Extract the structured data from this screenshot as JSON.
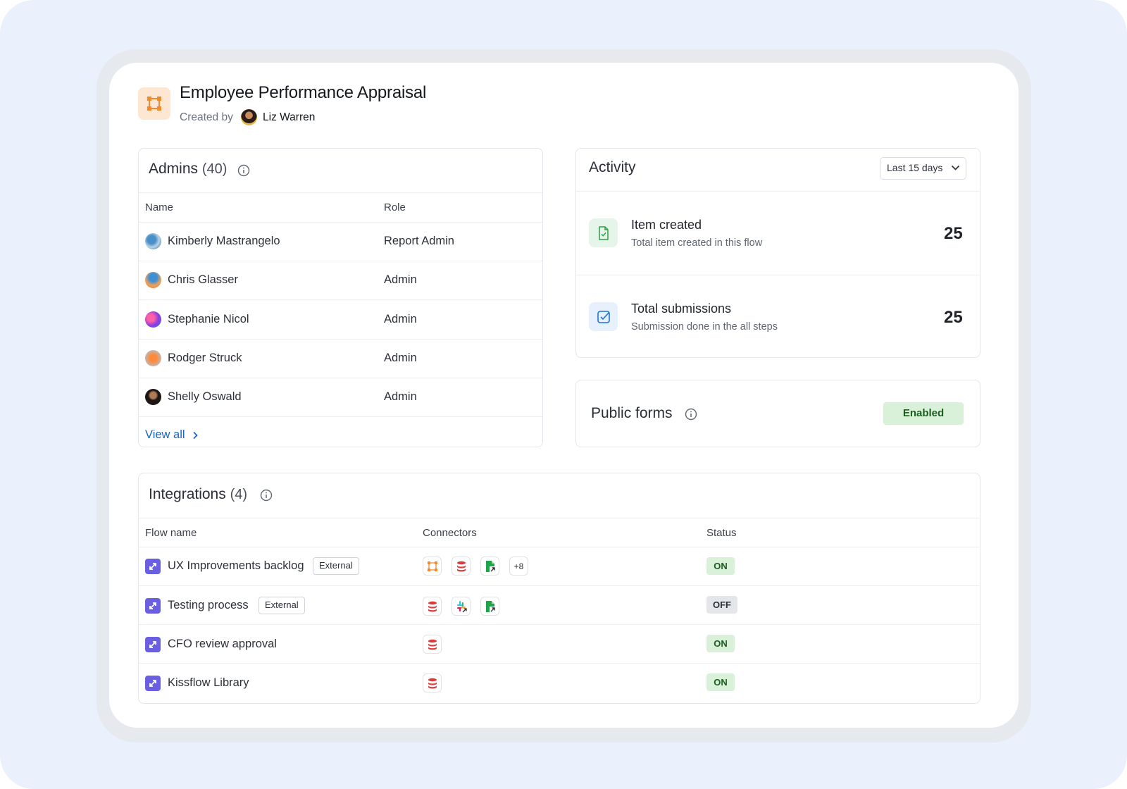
{
  "header": {
    "title": "Employee Performance Appraisal",
    "created_by_label": "Created by",
    "creator": "Liz Warren"
  },
  "admins": {
    "title": "Admins",
    "count": "(40)",
    "columns": {
      "name": "Name",
      "role": "Role"
    },
    "rows": [
      {
        "name": "Kimberly Mastrangelo",
        "role": "Report Admin"
      },
      {
        "name": "Chris Glasser",
        "role": "Admin"
      },
      {
        "name": "Stephanie Nicol",
        "role": "Admin"
      },
      {
        "name": "Rodger Struck",
        "role": "Admin"
      },
      {
        "name": "Shelly Oswald",
        "role": "Admin"
      }
    ],
    "view_all": "View all"
  },
  "activity": {
    "title": "Activity",
    "range": "Last 15 days",
    "items": [
      {
        "title": "Item created",
        "subtitle": "Total item created in this flow",
        "value": "25",
        "icon": "file-check-icon"
      },
      {
        "title": "Total submissions",
        "subtitle": "Submission done in the all steps",
        "value": "25",
        "icon": "checkbox-icon"
      }
    ]
  },
  "public_forms": {
    "title": "Public forms",
    "status": "Enabled"
  },
  "integrations": {
    "title": "Integrations",
    "count": "(4)",
    "columns": {
      "flow": "Flow name",
      "connectors": "Connectors",
      "status": "Status"
    },
    "rows": [
      {
        "name": "UX Improvements backlog",
        "tag": "External",
        "connectors": [
          "flow-connector-icon",
          "database-icon",
          "sheet-icon"
        ],
        "more": "+8",
        "status": "ON"
      },
      {
        "name": "Testing process",
        "tag": "External",
        "connectors": [
          "database-icon",
          "slack-icon",
          "sheet-icon"
        ],
        "status": "OFF"
      },
      {
        "name": "CFO review approval",
        "connectors": [
          "database-icon"
        ],
        "status": "ON"
      },
      {
        "name": "Kissflow Library",
        "connectors": [
          "database-icon"
        ],
        "status": "ON"
      }
    ]
  },
  "colors": {
    "accent": "#1565c0",
    "logo": "#f08a2c",
    "on": "#1b5e20",
    "flow_icon": "#6a5fe0"
  }
}
